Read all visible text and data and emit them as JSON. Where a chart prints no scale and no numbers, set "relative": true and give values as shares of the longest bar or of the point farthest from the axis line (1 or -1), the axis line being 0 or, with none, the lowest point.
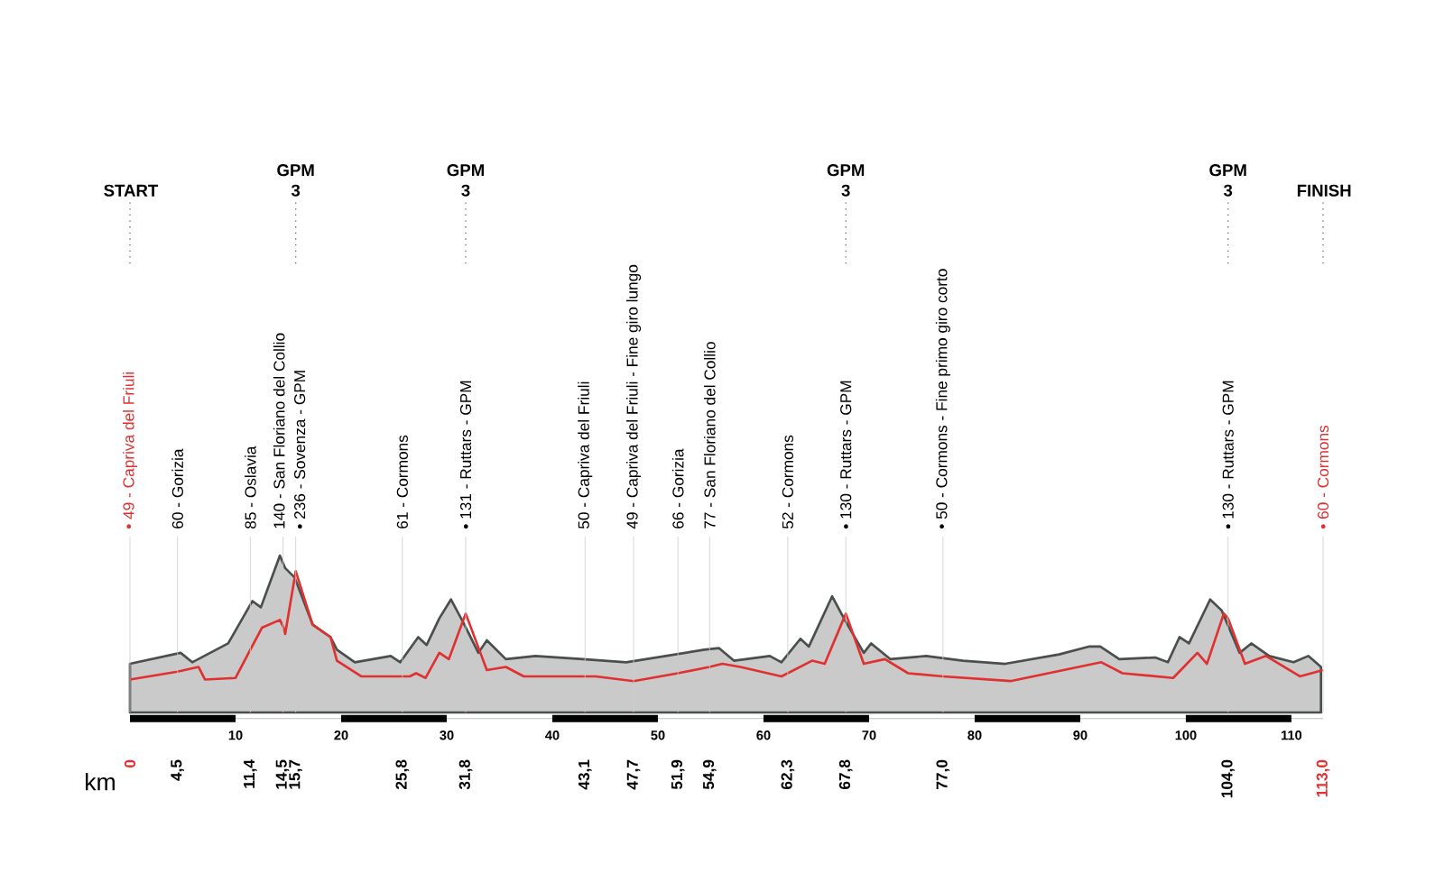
{
  "chart_data": {
    "type": "area",
    "relative": true,
    "xlabel": "km",
    "xlim": [
      0,
      113
    ],
    "xticks": [
      0,
      {
        "value": 4.5,
        "label": "4,5"
      },
      {
        "value": 11.4,
        "label": "11,4"
      },
      {
        "value": 14.5,
        "label": "14,5"
      },
      {
        "value": 15.7,
        "label": "15,7"
      },
      {
        "value": 25.8,
        "label": "25,8"
      },
      {
        "value": 31.8,
        "label": "31,8"
      },
      {
        "value": 43.1,
        "label": "43,1"
      },
      {
        "value": 47.7,
        "label": "47,7"
      },
      {
        "value": 51.9,
        "label": "51,9"
      },
      {
        "value": 54.9,
        "label": "54,9"
      },
      {
        "value": 62.3,
        "label": "62,3"
      },
      {
        "value": 67.8,
        "label": "67,8"
      },
      {
        "value": 77.0,
        "label": "77,0"
      },
      {
        "value": 104.0,
        "label": "104,0"
      },
      {
        "value": 113.0,
        "label": "113,0"
      }
    ],
    "x2lim": [
      0,
      113
    ],
    "x2ticks": [
      {
        "value": 0,
        "label": null
      },
      10,
      20,
      30,
      40,
      50,
      60,
      70,
      80,
      90,
      100,
      110
    ],
    "series": [
      {
        "color": "#4a4f4c",
        "x": [
          0,
          4.8,
          5.9,
          9.3,
          11.6,
          12.4,
          14.2,
          14.7,
          15.6,
          17.3,
          19.0,
          19.6,
          21.3,
          24.7,
          25.6,
          27.3,
          28.1,
          29.3,
          30.4,
          31.6,
          33.0,
          33.8,
          35.6,
          38.4,
          42.9,
          47.0,
          54.4,
          55.8,
          57.2,
          60.6,
          61.7,
          63.5,
          64.3,
          66.5,
          67.7,
          69.5,
          70.2,
          72.0,
          75.4,
          78.9,
          82.9,
          88.0,
          90.8,
          91.9,
          93.7,
          97.1,
          98.3,
          99.4,
          100.3,
          102.3,
          103.4,
          105.1,
          106.2,
          107.9,
          110.2,
          111.6,
          112.8
        ],
        "values": [
          0.31,
          0.38,
          0.32,
          0.44,
          0.71,
          0.67,
          1.0,
          0.92,
          0.86,
          0.56,
          0.48,
          0.4,
          0.32,
          0.36,
          0.32,
          0.48,
          0.43,
          0.6,
          0.72,
          0.57,
          0.38,
          0.46,
          0.34,
          0.36,
          0.34,
          0.32,
          0.4,
          0.41,
          0.33,
          0.36,
          0.32,
          0.47,
          0.42,
          0.74,
          0.59,
          0.38,
          0.44,
          0.34,
          0.36,
          0.33,
          0.31,
          0.37,
          0.42,
          0.42,
          0.34,
          0.35,
          0.32,
          0.48,
          0.44,
          0.72,
          0.65,
          0.38,
          0.44,
          0.36,
          0.32,
          0.36,
          0.29
        ]
      },
      {
        "type": "line",
        "color": "#e03030",
        "x": [
          0,
          4.5,
          6.5,
          7.1,
          10.0,
          11.4,
          12.5,
          14.2,
          14.5,
          14.7,
          15.7,
          17.3,
          19.0,
          19.6,
          21.9,
          25.8,
          26.5,
          27.1,
          28.0,
          29.3,
          30.2,
          31.8,
          33.3,
          33.8,
          35.6,
          37.3,
          43.1,
          44.1,
          47.7,
          51.9,
          54.9,
          56.1,
          57.8,
          61.7,
          62.3,
          64.6,
          65.8,
          67.8,
          69.5,
          71.5,
          73.7,
          77.0,
          83.4,
          92.0,
          94.0,
          98.8,
          101.1,
          102.0,
          103.6,
          104.0,
          105.6,
          107.6,
          110.8,
          113.0
        ],
        "values": [
          0.21,
          0.26,
          0.29,
          0.21,
          0.22,
          0.4,
          0.54,
          0.59,
          0.55,
          0.5,
          0.9,
          0.56,
          0.48,
          0.33,
          0.23,
          0.23,
          0.23,
          0.25,
          0.22,
          0.38,
          0.34,
          0.63,
          0.36,
          0.27,
          0.29,
          0.23,
          0.23,
          0.23,
          0.2,
          0.25,
          0.29,
          0.31,
          0.29,
          0.23,
          0.25,
          0.33,
          0.31,
          0.63,
          0.31,
          0.34,
          0.25,
          0.23,
          0.2,
          0.32,
          0.25,
          0.22,
          0.38,
          0.31,
          0.63,
          0.6,
          0.31,
          0.36,
          0.23,
          0.27
        ]
      }
    ],
    "grid": "x",
    "ref_lines": [
      {
        "axis": "x",
        "value": 0,
        "label": "START",
        "line_style": "dotted"
      },
      {
        "axis": "x",
        "value": 15.7,
        "label": "GPM 3",
        "line_style": "dotted"
      },
      {
        "axis": "x",
        "value": 31.8,
        "label": "GPM 3",
        "line_style": "dotted"
      },
      {
        "axis": "x",
        "value": 67.8,
        "label": "GPM 3",
        "line_style": "dotted"
      },
      {
        "axis": "x",
        "value": 104.0,
        "label": "GPM 3",
        "line_style": "dotted"
      },
      {
        "axis": "x",
        "value": 113.0,
        "label": "FINISH",
        "line_style": "dotted"
      }
    ],
    "annotations": [
      "• 49 - Capriva del Friuli",
      "60 - Gorizia",
      "85 - Oslavia",
      "140 - San Floriano del Collio",
      "• 236 - Sovenza - GPM",
      "61 - Cormons",
      "• 131 - Ruttars - GPM",
      "50 - Capriva del Friuli",
      "49 - Capriva del Friuli - Fine giro lungo",
      "66 - Gorizia",
      "77 - San Floriano del Collio",
      "52 - Cormons",
      "• 130 - Ruttars - GPM",
      "• 50 - Cormons - Fine primo giro corto",
      "• 130 - Ruttars - GPM",
      "• 60 - Cormons"
    ]
  }
}
